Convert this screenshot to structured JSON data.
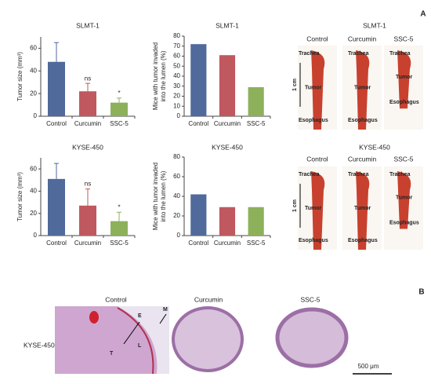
{
  "chart_data": [
    {
      "type": "bar",
      "title": "SLMT-1",
      "ylabel": [
        "Tumor size (mm³)"
      ],
      "categories": [
        "Control",
        "Curcumin",
        "SSC-5"
      ],
      "values": [
        48,
        22,
        12
      ],
      "errors": [
        17,
        7,
        4
      ],
      "annotations": [
        null,
        "ns",
        "*"
      ],
      "colors": [
        "#4f6a9b",
        "#c0585f",
        "#8db05b"
      ],
      "ylim": [
        0,
        70
      ],
      "yticks": [
        0,
        20,
        40,
        60
      ]
    },
    {
      "type": "bar",
      "title": "SLMT-1",
      "ylabel": [
        "Mice with tumor invaded",
        "into the lumen (%)"
      ],
      "categories": [
        "Control",
        "Curcumin",
        "SSC-5"
      ],
      "values": [
        72,
        61,
        29
      ],
      "colors": [
        "#4f6a9b",
        "#c0585f",
        "#8db05b"
      ],
      "ylim": [
        0,
        80
      ],
      "yticks": [
        0,
        10,
        20,
        30,
        40,
        50,
        60,
        70,
        80
      ]
    },
    {
      "type": "bar",
      "title": "KYSE-450",
      "ylabel": [
        "Tumor size (mm³)"
      ],
      "categories": [
        "Control",
        "Curcumin",
        "SSC-5"
      ],
      "values": [
        51,
        27,
        13
      ],
      "errors": [
        14,
        15,
        8
      ],
      "annotations": [
        null,
        "ns",
        "*"
      ],
      "colors": [
        "#4f6a9b",
        "#c0585f",
        "#8db05b"
      ],
      "ylim": [
        0,
        70
      ],
      "yticks": [
        0,
        20,
        40,
        60
      ]
    },
    {
      "type": "bar",
      "title": "KYSE-450",
      "ylabel": [
        "Mice with tumor invaded",
        "into the lumen (%)"
      ],
      "categories": [
        "Control",
        "Curcumin",
        "SSC-5"
      ],
      "values": [
        42,
        29,
        29
      ],
      "colors": [
        "#4f6a9b",
        "#c0585f",
        "#8db05b"
      ],
      "ylim": [
        0,
        80
      ],
      "yticks": [
        0,
        20,
        40,
        60,
        80
      ]
    }
  ],
  "panel_a": {
    "label": "A",
    "rows": [
      {
        "title": "SLMT-1"
      },
      {
        "title": "KYSE-450"
      }
    ],
    "columns": [
      "Control",
      "Curcumin",
      "SSC-5"
    ],
    "tags": [
      "Trachea",
      "Tumor",
      "Esophagus"
    ],
    "scale": "1 cm"
  },
  "panel_b": {
    "label": "B",
    "columns": [
      "Control",
      "Curcumin",
      "SSC-5"
    ],
    "row": "KYSE-450",
    "tags": [
      "E",
      "M",
      "L",
      "T"
    ],
    "scale": "500 μm"
  }
}
